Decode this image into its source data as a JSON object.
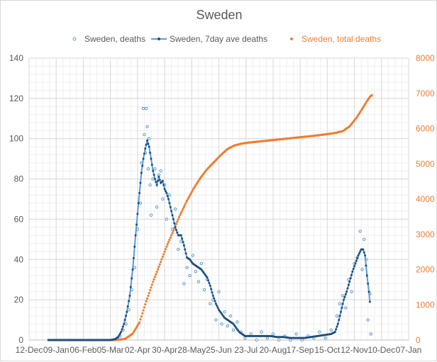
{
  "chart_data": {
    "type": "line",
    "title": "Sweden",
    "xlabel": "",
    "ylabel": "",
    "y2label": "",
    "legend_position": "top",
    "grid": true,
    "x_axis": {
      "type": "date",
      "min": "2019-12-12",
      "max": "2021-01-07",
      "tick_labels": [
        "12-Dec",
        "09-Jan",
        "06-Feb",
        "05-Mar",
        "02-Apr",
        "30-Apr",
        "28-May",
        "25-Jun",
        "23-Jul",
        "20-Aug",
        "17-Sep",
        "15-Oct",
        "12-Nov",
        "10-Dec",
        "07-Jan"
      ]
    },
    "y_left": {
      "min": 0,
      "max": 140,
      "ticks": [
        0,
        20,
        40,
        60,
        80,
        100,
        120,
        140
      ]
    },
    "y_right": {
      "min": 0,
      "max": 8000,
      "ticks": [
        0,
        1000,
        2000,
        3000,
        4000,
        5000,
        6000,
        7000,
        8000
      ]
    },
    "colors": {
      "daily": "#5b9bd5",
      "avg": "#1f4e79",
      "avg_line": "#5b9bd5",
      "total": "#ed7d31",
      "grid": "#d9d9d9",
      "right_axis_text": "#ed7d31"
    },
    "legend": [
      {
        "label": "Sweden, deaths",
        "style": "marker"
      },
      {
        "label": "Sweden, 7day ave deaths",
        "style": "line-marker"
      },
      {
        "label": "Sweden, total deaths",
        "style": "marker-orange"
      }
    ],
    "series": [
      {
        "name": "Sweden, 7day ave deaths",
        "axis": "left",
        "points": [
          [
            "2020-01-01",
            0
          ],
          [
            "2020-03-05",
            0
          ],
          [
            "2020-03-10",
            0.5
          ],
          [
            "2020-03-13",
            1.5
          ],
          [
            "2020-03-16",
            4
          ],
          [
            "2020-03-19",
            8
          ],
          [
            "2020-03-22",
            14
          ],
          [
            "2020-03-25",
            22
          ],
          [
            "2020-03-28",
            35
          ],
          [
            "2020-03-31",
            52
          ],
          [
            "2020-04-03",
            68
          ],
          [
            "2020-04-06",
            83
          ],
          [
            "2020-04-08",
            90
          ],
          [
            "2020-04-10",
            95
          ],
          [
            "2020-04-12",
            99
          ],
          [
            "2020-04-14",
            96
          ],
          [
            "2020-04-16",
            90
          ],
          [
            "2020-04-18",
            84
          ],
          [
            "2020-04-20",
            80
          ],
          [
            "2020-04-22",
            77
          ],
          [
            "2020-04-24",
            81
          ],
          [
            "2020-04-26",
            78
          ],
          [
            "2020-04-28",
            79
          ],
          [
            "2020-04-30",
            75
          ],
          [
            "2020-05-02",
            73
          ],
          [
            "2020-05-04",
            70
          ],
          [
            "2020-05-06",
            66
          ],
          [
            "2020-05-08",
            62
          ],
          [
            "2020-05-11",
            56
          ],
          [
            "2020-05-14",
            52
          ],
          [
            "2020-05-17",
            52
          ],
          [
            "2020-05-20",
            47
          ],
          [
            "2020-05-23",
            41
          ],
          [
            "2020-05-26",
            40
          ],
          [
            "2020-05-29",
            38
          ],
          [
            "2020-06-01",
            37
          ],
          [
            "2020-06-04",
            36
          ],
          [
            "2020-06-07",
            35
          ],
          [
            "2020-06-10",
            33
          ],
          [
            "2020-06-13",
            31
          ],
          [
            "2020-06-16",
            27
          ],
          [
            "2020-06-19",
            22
          ],
          [
            "2020-06-22",
            18
          ],
          [
            "2020-06-25",
            15
          ],
          [
            "2020-06-28",
            13
          ],
          [
            "2020-07-01",
            11
          ],
          [
            "2020-07-04",
            10
          ],
          [
            "2020-07-07",
            9
          ],
          [
            "2020-07-10",
            8
          ],
          [
            "2020-07-13",
            6
          ],
          [
            "2020-07-16",
            4
          ],
          [
            "2020-07-19",
            3
          ],
          [
            "2020-07-22",
            2
          ],
          [
            "2020-07-28",
            2
          ],
          [
            "2020-08-03",
            2
          ],
          [
            "2020-08-10",
            2
          ],
          [
            "2020-08-17",
            2
          ],
          [
            "2020-08-24",
            1.5
          ],
          [
            "2020-08-31",
            1.5
          ],
          [
            "2020-09-07",
            1
          ],
          [
            "2020-09-14",
            1
          ],
          [
            "2020-09-21",
            1
          ],
          [
            "2020-09-28",
            1.5
          ],
          [
            "2020-10-05",
            2
          ],
          [
            "2020-10-12",
            2.5
          ],
          [
            "2020-10-19",
            3
          ],
          [
            "2020-10-23",
            4
          ],
          [
            "2020-10-26",
            8
          ],
          [
            "2020-10-29",
            14
          ],
          [
            "2020-11-01",
            20
          ],
          [
            "2020-11-04",
            24
          ],
          [
            "2020-11-07",
            29
          ],
          [
            "2020-11-10",
            34
          ],
          [
            "2020-11-13",
            38
          ],
          [
            "2020-11-16",
            42
          ],
          [
            "2020-11-19",
            45
          ],
          [
            "2020-11-21",
            45
          ],
          [
            "2020-11-23",
            42
          ],
          [
            "2020-11-25",
            32
          ],
          [
            "2020-11-27",
            24
          ],
          [
            "2020-11-28",
            19
          ]
        ]
      },
      {
        "name": "Sweden, deaths",
        "axis": "left",
        "points": [
          [
            "2020-03-12",
            1
          ],
          [
            "2020-03-15",
            2
          ],
          [
            "2020-03-18",
            5
          ],
          [
            "2020-03-21",
            8
          ],
          [
            "2020-03-24",
            15
          ],
          [
            "2020-03-27",
            25
          ],
          [
            "2020-03-30",
            36
          ],
          [
            "2020-04-02",
            55
          ],
          [
            "2020-04-05",
            68
          ],
          [
            "2020-04-06",
            88
          ],
          [
            "2020-04-08",
            115
          ],
          [
            "2020-04-09",
            102
          ],
          [
            "2020-04-10",
            93
          ],
          [
            "2020-04-11",
            115
          ],
          [
            "2020-04-12",
            106
          ],
          [
            "2020-04-13",
            85
          ],
          [
            "2020-04-14",
            100
          ],
          [
            "2020-04-15",
            77
          ],
          [
            "2020-04-16",
            62
          ],
          [
            "2020-04-18",
            80
          ],
          [
            "2020-04-20",
            85
          ],
          [
            "2020-04-22",
            66
          ],
          [
            "2020-04-24",
            82
          ],
          [
            "2020-04-26",
            84
          ],
          [
            "2020-04-28",
            70
          ],
          [
            "2020-04-30",
            77
          ],
          [
            "2020-05-02",
            60
          ],
          [
            "2020-05-05",
            72
          ],
          [
            "2020-05-08",
            55
          ],
          [
            "2020-05-11",
            65
          ],
          [
            "2020-05-14",
            45
          ],
          [
            "2020-05-17",
            49
          ],
          [
            "2020-05-20",
            28
          ],
          [
            "2020-05-23",
            36
          ],
          [
            "2020-05-26",
            32
          ],
          [
            "2020-05-29",
            42
          ],
          [
            "2020-06-01",
            34
          ],
          [
            "2020-06-04",
            29
          ],
          [
            "2020-06-07",
            38
          ],
          [
            "2020-06-10",
            25
          ],
          [
            "2020-06-13",
            30
          ],
          [
            "2020-06-16",
            18
          ],
          [
            "2020-06-19",
            20
          ],
          [
            "2020-06-22",
            10
          ],
          [
            "2020-06-25",
            24
          ],
          [
            "2020-06-28",
            8
          ],
          [
            "2020-07-01",
            14
          ],
          [
            "2020-07-04",
            7
          ],
          [
            "2020-07-07",
            12
          ],
          [
            "2020-07-10",
            5
          ],
          [
            "2020-07-14",
            9
          ],
          [
            "2020-07-18",
            4
          ],
          [
            "2020-07-22",
            1
          ],
          [
            "2020-07-28",
            3
          ],
          [
            "2020-08-03",
            0
          ],
          [
            "2020-08-08",
            4
          ],
          [
            "2020-08-14",
            1
          ],
          [
            "2020-08-20",
            3
          ],
          [
            "2020-08-26",
            0
          ],
          [
            "2020-09-01",
            2
          ],
          [
            "2020-09-07",
            0
          ],
          [
            "2020-09-13",
            3
          ],
          [
            "2020-09-19",
            0
          ],
          [
            "2020-09-25",
            2
          ],
          [
            "2020-10-01",
            1
          ],
          [
            "2020-10-07",
            4
          ],
          [
            "2020-10-13",
            1
          ],
          [
            "2020-10-19",
            5
          ],
          [
            "2020-10-25",
            12
          ],
          [
            "2020-10-28",
            18
          ],
          [
            "2020-10-31",
            22
          ],
          [
            "2020-11-03",
            16
          ],
          [
            "2020-11-06",
            30
          ],
          [
            "2020-11-09",
            24
          ],
          [
            "2020-11-12",
            38
          ],
          [
            "2020-11-15",
            41
          ],
          [
            "2020-11-18",
            54
          ],
          [
            "2020-11-20",
            35
          ],
          [
            "2020-11-22",
            50
          ],
          [
            "2020-11-24",
            40
          ],
          [
            "2020-11-26",
            10
          ],
          [
            "2020-11-28",
            23
          ],
          [
            "2020-11-29",
            3
          ]
        ]
      },
      {
        "name": "Sweden, total deaths",
        "axis": "right",
        "points": [
          [
            "2020-01-01",
            0
          ],
          [
            "2020-03-10",
            0
          ],
          [
            "2020-03-20",
            30
          ],
          [
            "2020-03-28",
            180
          ],
          [
            "2020-04-04",
            500
          ],
          [
            "2020-04-11",
            1100
          ],
          [
            "2020-04-18",
            1650
          ],
          [
            "2020-04-25",
            2150
          ],
          [
            "2020-05-02",
            2650
          ],
          [
            "2020-05-09",
            3100
          ],
          [
            "2020-05-16",
            3550
          ],
          [
            "2020-05-23",
            3950
          ],
          [
            "2020-05-30",
            4300
          ],
          [
            "2020-06-06",
            4600
          ],
          [
            "2020-06-13",
            4850
          ],
          [
            "2020-06-20",
            5050
          ],
          [
            "2020-06-27",
            5250
          ],
          [
            "2020-07-04",
            5420
          ],
          [
            "2020-07-11",
            5520
          ],
          [
            "2020-07-18",
            5570
          ],
          [
            "2020-07-25",
            5600
          ],
          [
            "2020-08-08",
            5640
          ],
          [
            "2020-08-22",
            5680
          ],
          [
            "2020-09-05",
            5720
          ],
          [
            "2020-09-19",
            5760
          ],
          [
            "2020-10-03",
            5800
          ],
          [
            "2020-10-17",
            5850
          ],
          [
            "2020-10-24",
            5880
          ],
          [
            "2020-10-31",
            5930
          ],
          [
            "2020-11-07",
            6060
          ],
          [
            "2020-11-14",
            6300
          ],
          [
            "2020-11-21",
            6600
          ],
          [
            "2020-11-25",
            6780
          ],
          [
            "2020-11-28",
            6900
          ],
          [
            "2020-11-30",
            6950
          ]
        ]
      }
    ]
  }
}
